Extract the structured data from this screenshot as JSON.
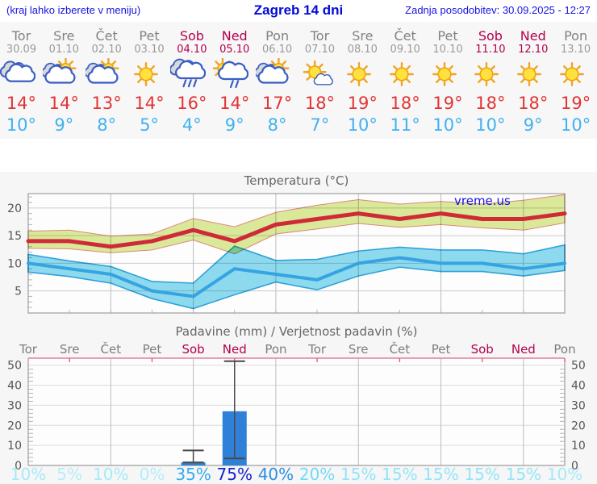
{
  "header": {
    "left_note": "(kraj lahko izberete v meniju)",
    "title": "Zagreb 14 dni",
    "last_update": "Zadnja posodobitev: 30.09.2025 - 12:27"
  },
  "forecast": {
    "days": [
      {
        "name": "Tor",
        "date": "30.09",
        "weekend": false,
        "icon": "cloudy",
        "tmax": "14°",
        "tmin": "10°"
      },
      {
        "name": "Sre",
        "date": "01.10",
        "weekend": false,
        "icon": "sun-cloud",
        "tmax": "14°",
        "tmin": "9°"
      },
      {
        "name": "Čet",
        "date": "02.10",
        "weekend": false,
        "icon": "sun-cloud",
        "tmax": "13°",
        "tmin": "8°"
      },
      {
        "name": "Pet",
        "date": "03.10",
        "weekend": false,
        "icon": "sunny",
        "tmax": "14°",
        "tmin": "5°"
      },
      {
        "name": "Sob",
        "date": "04.10",
        "weekend": true,
        "icon": "rain",
        "tmax": "16°",
        "tmin": "4°"
      },
      {
        "name": "Ned",
        "date": "05.10",
        "weekend": true,
        "icon": "sun-rain",
        "tmax": "14°",
        "tmin": "9°"
      },
      {
        "name": "Pon",
        "date": "06.10",
        "weekend": false,
        "icon": "sun-cloud",
        "tmax": "17°",
        "tmin": "8°"
      },
      {
        "name": "Tor",
        "date": "07.10",
        "weekend": false,
        "icon": "mostly-sunny",
        "tmax": "18°",
        "tmin": "7°"
      },
      {
        "name": "Sre",
        "date": "08.10",
        "weekend": false,
        "icon": "sunny",
        "tmax": "19°",
        "tmin": "10°"
      },
      {
        "name": "Čet",
        "date": "09.10",
        "weekend": false,
        "icon": "sunny",
        "tmax": "18°",
        "tmin": "11°"
      },
      {
        "name": "Pet",
        "date": "10.10",
        "weekend": false,
        "icon": "sunny",
        "tmax": "19°",
        "tmin": "10°"
      },
      {
        "name": "Sob",
        "date": "11.10",
        "weekend": true,
        "icon": "sunny",
        "tmax": "18°",
        "tmin": "10°"
      },
      {
        "name": "Ned",
        "date": "12.10",
        "weekend": true,
        "icon": "sunny",
        "tmax": "18°",
        "tmin": "9°"
      },
      {
        "name": "Pon",
        "date": "13.10",
        "weekend": false,
        "icon": "sunny",
        "tmax": "19°",
        "tmin": "10°"
      }
    ]
  },
  "colors": {
    "weekday": "#7d7d7d",
    "weekend": "#b4004e",
    "date": "#9a9a9a",
    "tmax_text": "#e23436",
    "tmin_text": "#41b1f0",
    "max_line": "#cf2a38",
    "max_band": "#dcea9b",
    "max_band_edge": "#e08a7a",
    "min_line": "#36a3e2",
    "min_band": "#8edcf0",
    "min_band_edge": "#30a2da",
    "bar": "#2f80d8",
    "whisker": "#4a4a4a",
    "grid": "#cccccc",
    "vgrid": "#bdbdbd",
    "axis": "#9e9e9e",
    "minor_tick": "#b5b5b5",
    "chart_text": "#666666",
    "tick_label": "#555555",
    "watermark": "#1414e8",
    "top_border": "#e08098",
    "plot_bg": "#fdfdfd"
  },
  "chart_data": [
    {
      "type": "line",
      "title": "Temperatura (°C)",
      "watermark": "vreme.us",
      "x_labels": [
        "Tor",
        "Sre",
        "Čet",
        "Pet",
        "Sob",
        "Ned",
        "Pon",
        "Tor",
        "Sre",
        "Čet",
        "Pet",
        "Sob",
        "Ned",
        "Pon"
      ],
      "ylim": [
        1,
        22.6
      ],
      "yticks": [
        5,
        10,
        15,
        20
      ],
      "series": [
        {
          "name": "tmax",
          "values": [
            14,
            14,
            13,
            14,
            16,
            14,
            17,
            18,
            19,
            18,
            19,
            18,
            18,
            19
          ]
        },
        {
          "name": "tmax_upper",
          "values": [
            15.8,
            16.0,
            14.9,
            15.3,
            18.1,
            16.6,
            19.2,
            20.5,
            21.5,
            20.7,
            21.2,
            20.7,
            21.4,
            22.4
          ]
        },
        {
          "name": "tmax_lower",
          "values": [
            12.7,
            12.6,
            11.9,
            12.4,
            14.2,
            11.7,
            15.3,
            16.2,
            17.2,
            16.5,
            17.0,
            16.4,
            16.0,
            17.3
          ]
        },
        {
          "name": "tmin",
          "values": [
            10,
            9,
            8,
            5,
            4,
            9,
            8,
            7,
            10,
            11,
            10,
            10,
            9,
            10
          ]
        },
        {
          "name": "tmin_upper",
          "values": [
            11.6,
            10.4,
            9.4,
            6.7,
            6.4,
            13.1,
            10.5,
            10.7,
            12.2,
            12.9,
            12.4,
            12.4,
            11.7,
            13.3
          ]
        },
        {
          "name": "tmin_lower",
          "values": [
            8.4,
            7.6,
            6.4,
            3.6,
            1.8,
            4.3,
            6.6,
            5.2,
            7.7,
            9.3,
            8.5,
            8.5,
            7.7,
            8.7
          ]
        }
      ]
    },
    {
      "type": "bar",
      "title": "Padavine (mm) / Verjetnost padavin (%)",
      "categories": [
        "Tor",
        "Sre",
        "Čet",
        "Pet",
        "Sob",
        "Ned",
        "Pon",
        "Tor",
        "Sre",
        "Čet",
        "Pet",
        "Sob",
        "Ned",
        "Pon"
      ],
      "weekend_flags": [
        false,
        false,
        false,
        false,
        true,
        true,
        false,
        false,
        false,
        false,
        false,
        true,
        true,
        false
      ],
      "values": [
        0,
        0,
        0,
        0,
        1.5,
        27,
        0,
        0,
        0,
        0,
        0,
        0,
        0,
        0
      ],
      "whiskers": [
        null,
        null,
        null,
        null,
        [
          1.5,
          7.5
        ],
        [
          3.5,
          52
        ],
        null,
        null,
        null,
        null,
        null,
        null,
        null,
        null
      ],
      "probabilities": [
        "10%",
        "5%",
        "10%",
        "0%",
        "35%",
        "75%",
        "40%",
        "20%",
        "15%",
        "15%",
        "15%",
        "15%",
        "15%",
        "10%"
      ],
      "prob_colors": [
        "#a5e9fa",
        "#b4edfb",
        "#a5e9fa",
        "#b4edfb",
        "#33abf0",
        "#1523cd",
        "#2d8fe2",
        "#71dbf7",
        "#93e4f9",
        "#93e4f9",
        "#93e4f9",
        "#93e4f9",
        "#93e4f9",
        "#a5e9fa"
      ],
      "ylim": [
        0,
        53.5
      ],
      "yticks": [
        0,
        10,
        20,
        30,
        40,
        50
      ]
    }
  ]
}
